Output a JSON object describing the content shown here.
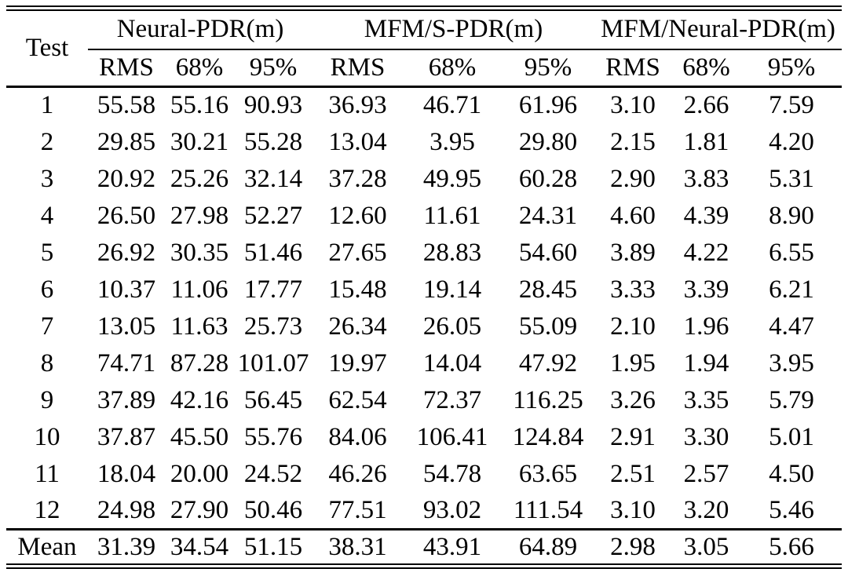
{
  "table": {
    "row_header_label": "Test",
    "groups": [
      {
        "label": "Neural-PDR(m)"
      },
      {
        "label": "MFM/S-PDR(m)"
      },
      {
        "label": "MFM/Neural-PDR(m)"
      }
    ],
    "subheaders": [
      "RMS",
      "68%",
      "95%"
    ],
    "bold_value_index": 6,
    "rows": [
      {
        "test": "1",
        "values": [
          "55.58",
          "55.16",
          "90.93",
          "36.93",
          "46.71",
          "61.96",
          "3.10",
          "2.66",
          "7.59"
        ]
      },
      {
        "test": "2",
        "values": [
          "29.85",
          "30.21",
          "55.28",
          "13.04",
          "3.95",
          "29.80",
          "2.15",
          "1.81",
          "4.20"
        ]
      },
      {
        "test": "3",
        "values": [
          "20.92",
          "25.26",
          "32.14",
          "37.28",
          "49.95",
          "60.28",
          "2.90",
          "3.83",
          "5.31"
        ]
      },
      {
        "test": "4",
        "values": [
          "26.50",
          "27.98",
          "52.27",
          "12.60",
          "11.61",
          "24.31",
          "4.60",
          "4.39",
          "8.90"
        ]
      },
      {
        "test": "5",
        "values": [
          "26.92",
          "30.35",
          "51.46",
          "27.65",
          "28.83",
          "54.60",
          "3.89",
          "4.22",
          "6.55"
        ]
      },
      {
        "test": "6",
        "values": [
          "10.37",
          "11.06",
          "17.77",
          "15.48",
          "19.14",
          "28.45",
          "3.33",
          "3.39",
          "6.21"
        ]
      },
      {
        "test": "7",
        "values": [
          "13.05",
          "11.63",
          "25.73",
          "26.34",
          "26.05",
          "55.09",
          "2.10",
          "1.96",
          "4.47"
        ]
      },
      {
        "test": "8",
        "values": [
          "74.71",
          "87.28",
          "101.07",
          "19.97",
          "14.04",
          "47.92",
          "1.95",
          "1.94",
          "3.95"
        ]
      },
      {
        "test": "9",
        "values": [
          "37.89",
          "42.16",
          "56.45",
          "62.54",
          "72.37",
          "116.25",
          "3.26",
          "3.35",
          "5.79"
        ]
      },
      {
        "test": "10",
        "values": [
          "37.87",
          "45.50",
          "55.76",
          "84.06",
          "106.41",
          "124.84",
          "2.91",
          "3.30",
          "5.01"
        ]
      },
      {
        "test": "11",
        "values": [
          "18.04",
          "20.00",
          "24.52",
          "46.26",
          "54.78",
          "63.65",
          "2.51",
          "2.57",
          "4.50"
        ]
      },
      {
        "test": "12",
        "values": [
          "24.98",
          "27.90",
          "50.46",
          "77.51",
          "93.02",
          "111.54",
          "3.10",
          "3.20",
          "5.46"
        ]
      },
      {
        "test": "Mean",
        "values": [
          "31.39",
          "34.54",
          "51.15",
          "38.31",
          "43.91",
          "64.89",
          "2.98",
          "3.05",
          "5.66"
        ]
      }
    ],
    "text_color": "#000000",
    "background_color": "#ffffff"
  }
}
